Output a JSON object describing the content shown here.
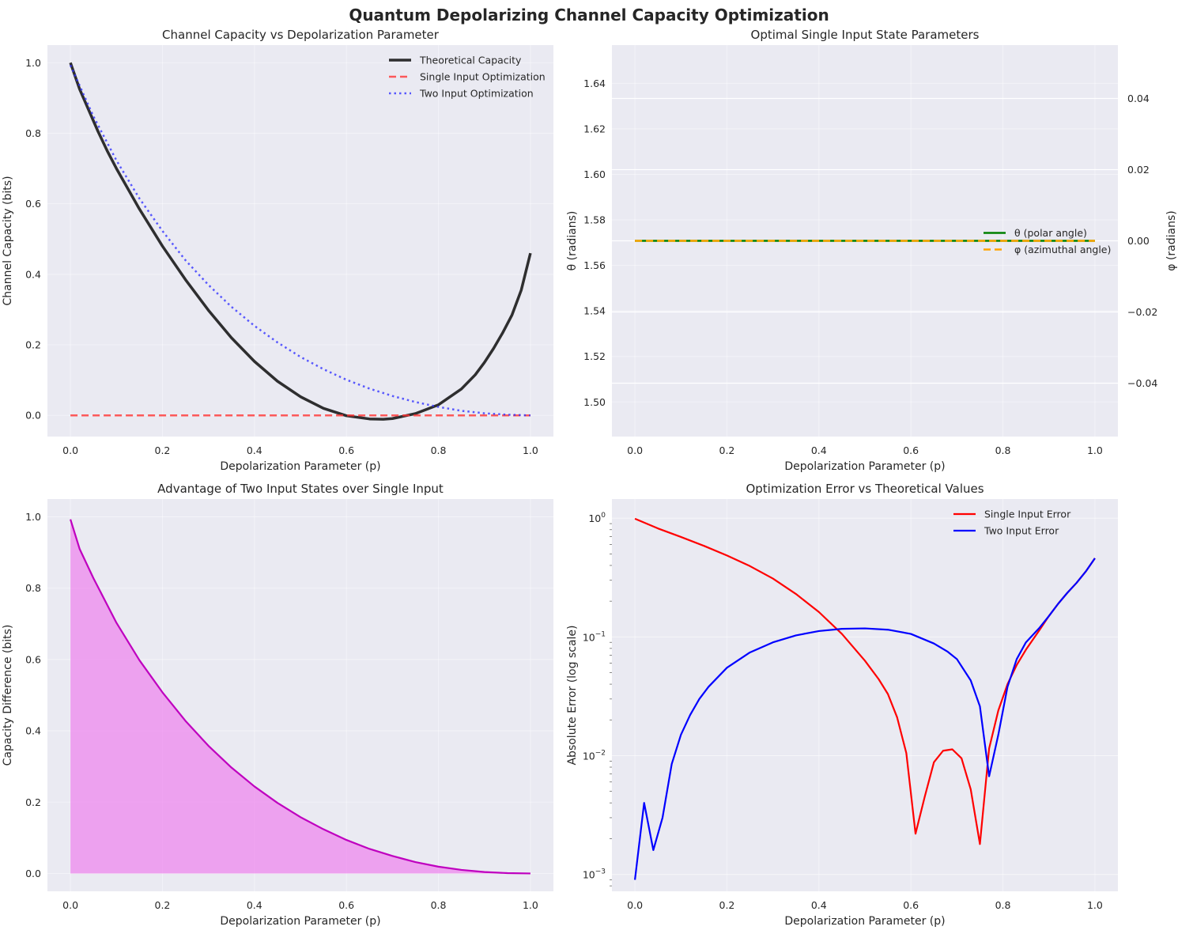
{
  "figure": {
    "suptitle": "Quantum Depolarizing Channel Capacity Optimization"
  },
  "colors": {
    "background": "#EAEAF2",
    "grid": "#FFFFFF",
    "theoretical": "#1a1a1a",
    "single": "#ff3333",
    "two": "#3333ff",
    "theta": "#008000",
    "phi": "#FFA500",
    "advantage_line": "#BF00BF",
    "advantage_fill": "#EE82EE",
    "single_error": "#ff0000",
    "two_error": "#0000ff"
  },
  "chart_data": [
    {
      "type": "line",
      "title": "Channel Capacity vs Depolarization Parameter",
      "xlabel": "Depolarization Parameter (p)",
      "ylabel": "Channel Capacity (bits)",
      "xlim": [
        -0.05,
        1.05
      ],
      "ylim": [
        -0.06,
        1.05
      ],
      "xticks": [
        0.0,
        0.2,
        0.4,
        0.6,
        0.8,
        1.0
      ],
      "xtick_labels": [
        "0.0",
        "0.2",
        "0.4",
        "0.6",
        "0.8",
        "1.0"
      ],
      "yticks": [
        0.0,
        0.2,
        0.4,
        0.6,
        0.8,
        1.0
      ],
      "ytick_labels": [
        "0.0",
        "0.2",
        "0.4",
        "0.6",
        "0.8",
        "1.0"
      ],
      "grid": true,
      "legend_position": "upper right",
      "series": [
        {
          "name": "Theoretical Capacity",
          "style": "solid",
          "x": [
            0.0,
            0.02,
            0.04,
            0.06,
            0.08,
            0.1,
            0.15,
            0.2,
            0.25,
            0.3,
            0.35,
            0.4,
            0.45,
            0.5,
            0.55,
            0.6,
            0.65,
            0.68,
            0.7,
            0.75,
            0.8,
            0.85,
            0.88,
            0.9,
            0.92,
            0.94,
            0.96,
            0.98,
            1.0
          ],
          "y": [
            1.0,
            0.925,
            0.865,
            0.805,
            0.75,
            0.7,
            0.585,
            0.48,
            0.385,
            0.298,
            0.22,
            0.153,
            0.097,
            0.053,
            0.02,
            -0.001,
            -0.01,
            -0.011,
            -0.009,
            0.005,
            0.03,
            0.075,
            0.115,
            0.15,
            0.19,
            0.235,
            0.285,
            0.355,
            0.46
          ]
        },
        {
          "name": "Single Input Optimization",
          "style": "dashed",
          "x": [
            0.0,
            1.0
          ],
          "y": [
            0.0,
            0.0
          ]
        },
        {
          "name": "Two Input Optimization",
          "style": "dotted",
          "x": [
            0.0,
            0.05,
            0.1,
            0.15,
            0.2,
            0.25,
            0.3,
            0.35,
            0.4,
            0.45,
            0.5,
            0.55,
            0.6,
            0.65,
            0.7,
            0.75,
            0.8,
            0.85,
            0.9,
            0.95,
            1.0
          ],
          "y": [
            0.993,
            0.848,
            0.723,
            0.615,
            0.523,
            0.44,
            0.37,
            0.308,
            0.254,
            0.207,
            0.166,
            0.131,
            0.101,
            0.076,
            0.055,
            0.038,
            0.024,
            0.013,
            0.006,
            0.002,
            0.0
          ]
        }
      ]
    },
    {
      "type": "line",
      "title": "Optimal Single Input State Parameters",
      "xlabel": "Depolarization Parameter (p)",
      "ylabel": "θ (radians)",
      "ylabel_right": "φ (radians)",
      "xlim": [
        -0.05,
        1.05
      ],
      "ylim": [
        1.4848,
        1.6568
      ],
      "ylim_right": [
        -0.055,
        0.055
      ],
      "xticks": [
        0.0,
        0.2,
        0.4,
        0.6,
        0.8,
        1.0
      ],
      "xtick_labels": [
        "0.0",
        "0.2",
        "0.4",
        "0.6",
        "0.8",
        "1.0"
      ],
      "yticks": [
        1.5,
        1.52,
        1.54,
        1.56,
        1.58,
        1.6,
        1.62,
        1.64
      ],
      "ytick_labels": [
        "1.50",
        "1.52",
        "1.54",
        "1.56",
        "1.58",
        "1.60",
        "1.62",
        "1.64"
      ],
      "yticks_right": [
        -0.04,
        -0.02,
        0.0,
        0.02,
        0.04
      ],
      "ytick_labels_right": [
        "−0.04",
        "−0.02",
        "0.00",
        "0.02",
        "0.04"
      ],
      "grid": true,
      "legend_position": "center right",
      "series": [
        {
          "name": "θ (polar angle)",
          "style": "solid",
          "axis": "left",
          "x": [
            0.0,
            1.0
          ],
          "y": [
            1.5708,
            1.5708
          ]
        },
        {
          "name": "φ (azimuthal angle)",
          "style": "dashed",
          "axis": "right",
          "x": [
            0.0,
            1.0
          ],
          "y": [
            0.0,
            0.0
          ]
        }
      ]
    },
    {
      "type": "area",
      "title": "Advantage of Two Input States over Single Input",
      "xlabel": "Depolarization Parameter (p)",
      "ylabel": "Capacity Difference (bits)",
      "xlim": [
        -0.05,
        1.05
      ],
      "ylim": [
        -0.05,
        1.05
      ],
      "xticks": [
        0.0,
        0.2,
        0.4,
        0.6,
        0.8,
        1.0
      ],
      "xtick_labels": [
        "0.0",
        "0.2",
        "0.4",
        "0.6",
        "0.8",
        "1.0"
      ],
      "yticks": [
        0.0,
        0.2,
        0.4,
        0.6,
        0.8,
        1.0
      ],
      "ytick_labels": [
        "0.0",
        "0.2",
        "0.4",
        "0.6",
        "0.8",
        "1.0"
      ],
      "grid": true,
      "series": [
        {
          "name": "",
          "style": "solid",
          "x": [
            0.0,
            0.02,
            0.05,
            0.1,
            0.15,
            0.2,
            0.25,
            0.3,
            0.35,
            0.4,
            0.45,
            0.5,
            0.55,
            0.6,
            0.65,
            0.7,
            0.75,
            0.8,
            0.85,
            0.9,
            0.95,
            1.0
          ],
          "y": [
            0.993,
            0.91,
            0.828,
            0.703,
            0.598,
            0.508,
            0.428,
            0.358,
            0.297,
            0.244,
            0.198,
            0.158,
            0.124,
            0.094,
            0.069,
            0.049,
            0.032,
            0.019,
            0.01,
            0.004,
            0.001,
            0.0
          ]
        }
      ]
    },
    {
      "type": "line",
      "title": "Optimization Error vs Theoretical Values",
      "xlabel": "Depolarization Parameter (p)",
      "ylabel": "Absolute Error (log scale)",
      "yscale": "log",
      "xlim": [
        -0.05,
        1.05
      ],
      "ylim": [
        0.00072,
        1.45
      ],
      "xticks": [
        0.0,
        0.2,
        0.4,
        0.6,
        0.8,
        1.0
      ],
      "xtick_labels": [
        "0.0",
        "0.2",
        "0.4",
        "0.6",
        "0.8",
        "1.0"
      ],
      "yticks": [
        0.001,
        0.01,
        0.1,
        1
      ],
      "ytick_base": "10",
      "ytick_exponents": [
        "−3",
        "−2",
        "−1",
        "0"
      ],
      "grid": true,
      "legend_position": "upper right",
      "series": [
        {
          "name": "Single Input Error",
          "style": "solid",
          "x": [
            0.0,
            0.05,
            0.1,
            0.15,
            0.2,
            0.25,
            0.3,
            0.35,
            0.4,
            0.45,
            0.5,
            0.53,
            0.55,
            0.57,
            0.59,
            0.61,
            0.63,
            0.65,
            0.67,
            0.69,
            0.71,
            0.73,
            0.75,
            0.77,
            0.79,
            0.81,
            0.83,
            0.85,
            0.88,
            0.9,
            0.92,
            0.94,
            0.96,
            0.98,
            1.0
          ],
          "y": [
            0.99,
            0.82,
            0.695,
            0.585,
            0.485,
            0.395,
            0.31,
            0.23,
            0.162,
            0.106,
            0.063,
            0.044,
            0.033,
            0.021,
            0.0105,
            0.0022,
            0.0045,
            0.0088,
            0.011,
            0.0113,
            0.0095,
            0.0052,
            0.0018,
            0.0115,
            0.024,
            0.04,
            0.058,
            0.078,
            0.115,
            0.15,
            0.19,
            0.235,
            0.285,
            0.355,
            0.46
          ]
        },
        {
          "name": "Two Input Error",
          "style": "solid",
          "x": [
            0.0,
            0.02,
            0.04,
            0.06,
            0.08,
            0.1,
            0.12,
            0.14,
            0.16,
            0.2,
            0.25,
            0.3,
            0.35,
            0.4,
            0.45,
            0.5,
            0.55,
            0.6,
            0.65,
            0.68,
            0.7,
            0.73,
            0.75,
            0.77,
            0.79,
            0.81,
            0.83,
            0.85,
            0.88,
            0.9,
            0.92,
            0.94,
            0.96,
            0.98,
            1.0
          ],
          "y": [
            0.0009,
            0.004,
            0.0016,
            0.003,
            0.0085,
            0.015,
            0.022,
            0.03,
            0.038,
            0.055,
            0.074,
            0.09,
            0.103,
            0.112,
            0.117,
            0.118,
            0.115,
            0.106,
            0.088,
            0.075,
            0.065,
            0.043,
            0.026,
            0.0067,
            0.015,
            0.038,
            0.065,
            0.09,
            0.12,
            0.15,
            0.19,
            0.235,
            0.285,
            0.355,
            0.46
          ]
        }
      ]
    }
  ]
}
